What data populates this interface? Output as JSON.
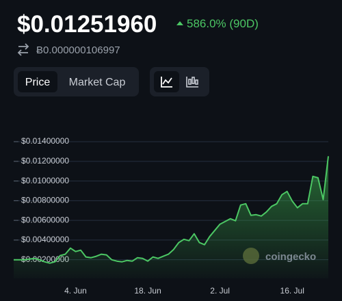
{
  "header": {
    "price": "$0.01251960",
    "change": "586.0% (90D)",
    "btc_price": "Ƀ0.000000106997"
  },
  "tabs": [
    "Price",
    "Market Cap"
  ],
  "chart_data": {
    "type": "line",
    "annotation": "coingecko",
    "color": "#4cc764",
    "grid": true,
    "categories": [
      null,
      null,
      null,
      null,
      null,
      null,
      null,
      null,
      null,
      null,
      null,
      null,
      "4. Jun",
      null,
      null,
      null,
      null,
      null,
      null,
      null,
      null,
      null,
      null,
      null,
      null,
      null,
      "18. Jun",
      null,
      null,
      null,
      null,
      null,
      null,
      null,
      null,
      null,
      null,
      null,
      null,
      null,
      "2. Jul",
      null,
      null,
      null,
      null,
      null,
      null,
      null,
      null,
      null,
      null,
      null,
      null,
      null,
      "16. Jul",
      null,
      null,
      null,
      null,
      null,
      null,
      null
    ],
    "values": [
      0.002,
      0.002,
      0.002,
      0.00207,
      0.00214,
      0.002,
      0.00179,
      0.00165,
      0.00179,
      0.00242,
      0.00256,
      0.00318,
      0.00283,
      0.00297,
      0.00228,
      0.00221,
      0.00235,
      0.00256,
      0.00249,
      0.002,
      0.00186,
      0.00179,
      0.00193,
      0.00186,
      0.00221,
      0.00214,
      0.00186,
      0.00228,
      0.00214,
      0.00235,
      0.00256,
      0.00304,
      0.00374,
      0.00408,
      0.00394,
      0.00464,
      0.00374,
      0.00353,
      0.00436,
      0.00499,
      0.00561,
      0.00589,
      0.00617,
      0.00596,
      0.00756,
      0.00769,
      0.00651,
      0.00658,
      0.00644,
      0.00686,
      0.00742,
      0.00769,
      0.0086,
      0.00894,
      0.00797,
      0.00728,
      0.00769,
      0.00769,
      0.01047,
      0.01033,
      0.00811,
      0.01252
    ],
    "ylim": [
      0.0001,
      0.0147
    ],
    "yticks": [
      {
        "value": 0.002,
        "label": "$0.00200000"
      },
      {
        "value": 0.004,
        "label": "$0.00400000"
      },
      {
        "value": 0.006,
        "label": "$0.00600000"
      },
      {
        "value": 0.008,
        "label": "$0.00800000"
      },
      {
        "value": 0.01,
        "label": "$0.01000000"
      },
      {
        "value": 0.012,
        "label": "$0.01200000"
      },
      {
        "value": 0.014,
        "label": "$0.01400000"
      }
    ]
  }
}
